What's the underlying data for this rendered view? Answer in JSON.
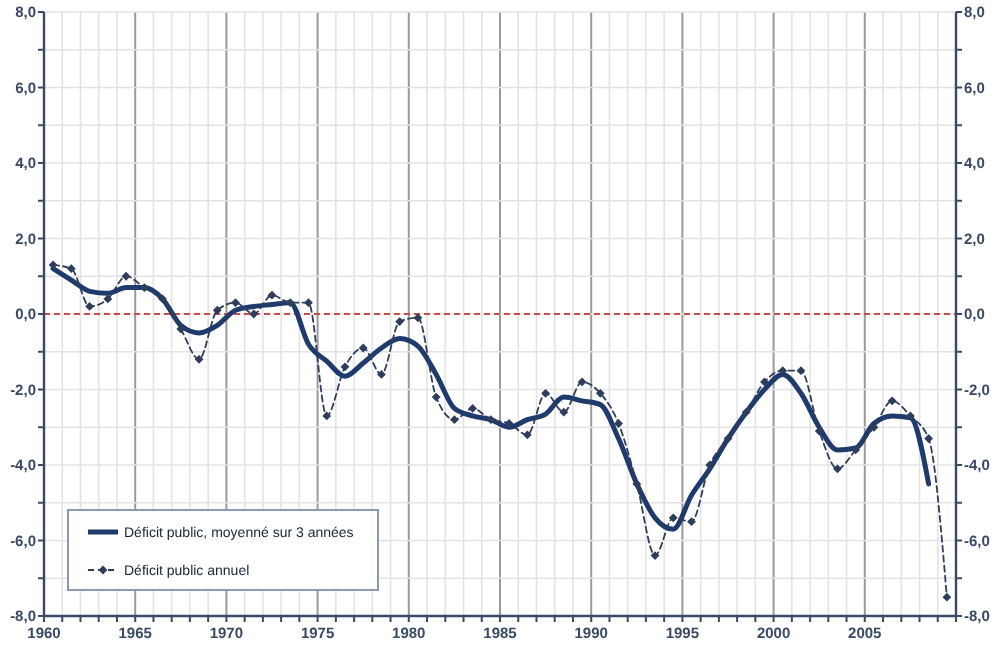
{
  "chart_data": {
    "type": "line",
    "x": [
      1960,
      1961,
      1962,
      1963,
      1964,
      1965,
      1966,
      1967,
      1968,
      1969,
      1970,
      1971,
      1972,
      1973,
      1974,
      1975,
      1976,
      1977,
      1978,
      1979,
      1980,
      1981,
      1982,
      1983,
      1984,
      1985,
      1986,
      1987,
      1988,
      1989,
      1990,
      1991,
      1992,
      1993,
      1994,
      1995,
      1996,
      1997,
      1998,
      1999,
      2000,
      2001,
      2002,
      2003,
      2004,
      2005,
      2006,
      2007,
      2008,
      2009
    ],
    "series": [
      {
        "name": "Déficit public, moyenné sur 3 années",
        "color": "#1f3b6e",
        "line_style": "solid",
        "marker": "none",
        "values": [
          1.2,
          0.9,
          0.6,
          0.55,
          0.7,
          0.7,
          0.4,
          -0.3,
          -0.5,
          -0.3,
          0.1,
          0.2,
          0.25,
          0.3,
          -0.8,
          -1.25,
          -1.65,
          -1.3,
          -0.9,
          -0.65,
          -0.85,
          -1.6,
          -2.5,
          -2.7,
          -2.8,
          -3.0,
          -2.8,
          -2.65,
          -2.2,
          -2.3,
          -2.4,
          -3.3,
          -4.5,
          -5.4,
          -5.7,
          -4.8,
          -4.1,
          -3.3,
          -2.6,
          -2.0,
          -1.6,
          -2.1,
          -3.0,
          -3.6,
          -3.55,
          -2.9,
          -2.7,
          -2.75,
          -4.5,
          null
        ]
      },
      {
        "name": "Déficit public annuel",
        "color": "#2e3d5c",
        "line_style": "dashed",
        "marker": "diamond",
        "values": [
          1.3,
          1.2,
          0.2,
          0.4,
          1.0,
          0.7,
          0.4,
          -0.4,
          -1.2,
          0.1,
          0.3,
          0.0,
          0.5,
          0.3,
          0.3,
          -2.7,
          -1.4,
          -0.9,
          -1.6,
          -0.2,
          -0.1,
          -2.2,
          -2.8,
          -2.5,
          -2.8,
          -2.9,
          -3.2,
          -2.1,
          -2.6,
          -1.8,
          -2.1,
          -2.9,
          -4.5,
          -6.4,
          -5.4,
          -5.5,
          -4.0,
          -3.3,
          -2.6,
          -1.8,
          -1.5,
          -1.5,
          -3.1,
          -4.1,
          -3.6,
          -3.0,
          -2.3,
          -2.7,
          -3.3,
          -7.5
        ]
      }
    ],
    "xlim": [
      1959.5,
      2009.5
    ],
    "xticks": [
      {
        "value": 1959.5,
        "label": "1960"
      },
      {
        "value": 1960.5,
        "label": null
      },
      {
        "value": 1961.5,
        "label": null
      },
      {
        "value": 1962.5,
        "label": null
      },
      {
        "value": 1963.5,
        "label": null
      },
      {
        "value": 1964.5,
        "label": "1965"
      },
      {
        "value": 1965.5,
        "label": null
      },
      {
        "value": 1966.5,
        "label": null
      },
      {
        "value": 1967.5,
        "label": null
      },
      {
        "value": 1968.5,
        "label": null
      },
      {
        "value": 1969.5,
        "label": "1970"
      },
      {
        "value": 1970.5,
        "label": null
      },
      {
        "value": 1971.5,
        "label": null
      },
      {
        "value": 1972.5,
        "label": null
      },
      {
        "value": 1973.5,
        "label": null
      },
      {
        "value": 1974.5,
        "label": "1975"
      },
      {
        "value": 1975.5,
        "label": null
      },
      {
        "value": 1976.5,
        "label": null
      },
      {
        "value": 1977.5,
        "label": null
      },
      {
        "value": 1978.5,
        "label": null
      },
      {
        "value": 1979.5,
        "label": "1980"
      },
      {
        "value": 1980.5,
        "label": null
      },
      {
        "value": 1981.5,
        "label": null
      },
      {
        "value": 1982.5,
        "label": null
      },
      {
        "value": 1983.5,
        "label": null
      },
      {
        "value": 1984.5,
        "label": "1985"
      },
      {
        "value": 1985.5,
        "label": null
      },
      {
        "value": 1986.5,
        "label": null
      },
      {
        "value": 1987.5,
        "label": null
      },
      {
        "value": 1988.5,
        "label": null
      },
      {
        "value": 1989.5,
        "label": "1990"
      },
      {
        "value": 1990.5,
        "label": null
      },
      {
        "value": 1991.5,
        "label": null
      },
      {
        "value": 1992.5,
        "label": null
      },
      {
        "value": 1993.5,
        "label": null
      },
      {
        "value": 1994.5,
        "label": "1995"
      },
      {
        "value": 1995.5,
        "label": null
      },
      {
        "value": 1996.5,
        "label": null
      },
      {
        "value": 1997.5,
        "label": null
      },
      {
        "value": 1998.5,
        "label": null
      },
      {
        "value": 1999.5,
        "label": "2000"
      },
      {
        "value": 2000.5,
        "label": null
      },
      {
        "value": 2001.5,
        "label": null
      },
      {
        "value": 2002.5,
        "label": null
      },
      {
        "value": 2003.5,
        "label": null
      },
      {
        "value": 2004.5,
        "label": "2005"
      },
      {
        "value": 2005.5,
        "label": null
      },
      {
        "value": 2006.5,
        "label": null
      },
      {
        "value": 2007.5,
        "label": null
      },
      {
        "value": 2008.5,
        "label": null
      },
      {
        "value": 2009.5,
        "label": null
      }
    ],
    "ylim": [
      -8,
      8
    ],
    "yticks": [
      {
        "value": -8,
        "label": "-8,0"
      },
      {
        "value": -7,
        "label": null
      },
      {
        "value": -6,
        "label": "-6,0"
      },
      {
        "value": -5,
        "label": null
      },
      {
        "value": -4,
        "label": "-4,0"
      },
      {
        "value": -3,
        "label": null
      },
      {
        "value": -2,
        "label": "-2,0"
      },
      {
        "value": -1,
        "label": null
      },
      {
        "value": 0,
        "label": "0,0"
      },
      {
        "value": 1,
        "label": null
      },
      {
        "value": 2,
        "label": "2,0"
      },
      {
        "value": 3,
        "label": null
      },
      {
        "value": 4,
        "label": "4,0"
      },
      {
        "value": 5,
        "label": null
      },
      {
        "value": 6,
        "label": "6,0"
      },
      {
        "value": 7,
        "label": null
      },
      {
        "value": 8,
        "label": "8,0"
      }
    ],
    "y2lim": [
      -8,
      8
    ],
    "y2ticks": [
      {
        "value": -8,
        "label": "-8,0"
      },
      {
        "value": -7,
        "label": null
      },
      {
        "value": -6,
        "label": "-6,0"
      },
      {
        "value": -5,
        "label": null
      },
      {
        "value": -4,
        "label": "-4,0"
      },
      {
        "value": -3,
        "label": null
      },
      {
        "value": -2,
        "label": "-2,0"
      },
      {
        "value": -1,
        "label": null
      },
      {
        "value": 0,
        "label": "0,0"
      },
      {
        "value": 1,
        "label": null
      },
      {
        "value": 2,
        "label": "2,0"
      },
      {
        "value": 3,
        "label": null
      },
      {
        "value": 4,
        "label": "4,0"
      },
      {
        "value": 5,
        "label": null
      },
      {
        "value": 6,
        "label": "6,0"
      },
      {
        "value": 7,
        "label": null
      },
      {
        "value": 8,
        "label": "8,0"
      }
    ],
    "ref_lines": [
      {
        "axis": "y",
        "value": 0,
        "color": "#c0504d",
        "line_style": "dashed"
      }
    ],
    "grid": true,
    "legend": "bottom left"
  }
}
